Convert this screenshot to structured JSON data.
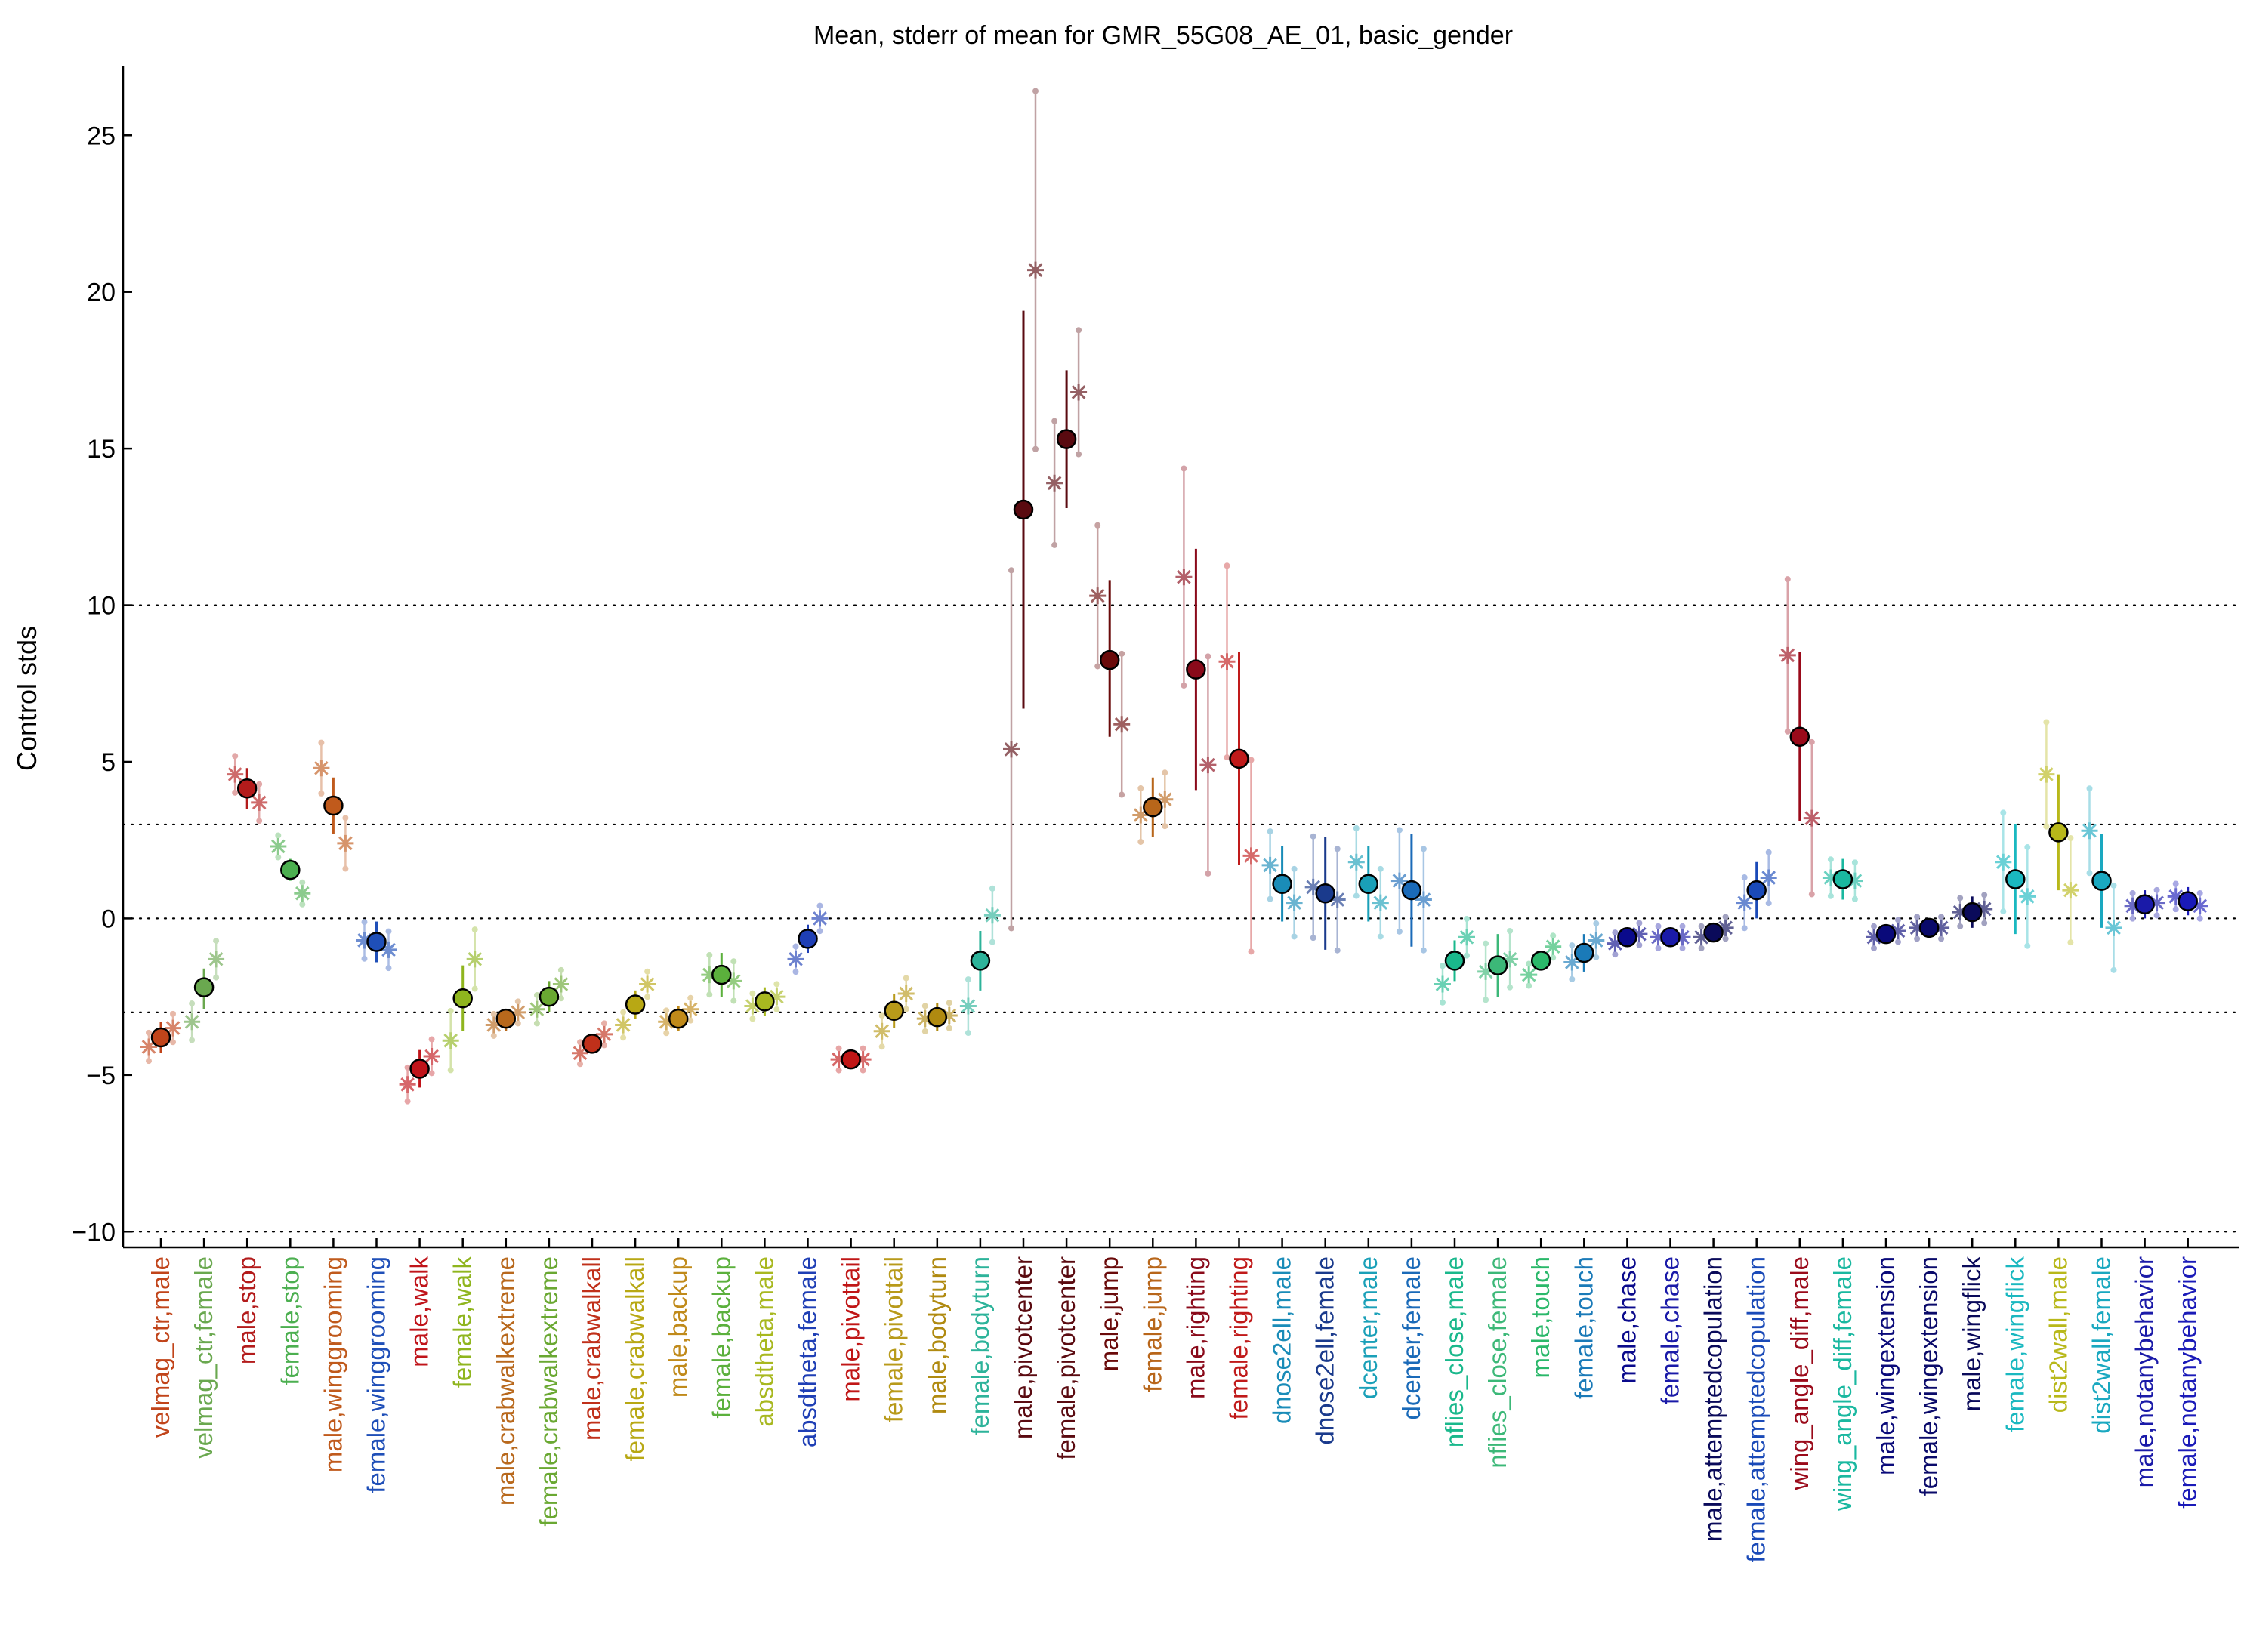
{
  "chart_data": {
    "type": "scatter",
    "title": "Mean, stderr of mean for GMR_55G08_AE_01, basic_gender",
    "xlabel": "",
    "ylabel": "Control stds",
    "ylim": [
      -10.5,
      27.2
    ],
    "yticks": [
      -10,
      -5,
      0,
      5,
      10,
      15,
      20,
      25
    ],
    "reference_lines": [
      -10,
      -3,
      0,
      3,
      10
    ],
    "grid": false,
    "legend": "none",
    "categories": [
      {
        "label": "velmag_ctr,male",
        "color": "#c1441a",
        "mean": -3.8,
        "lo": -4.3,
        "hi": -3.3,
        "dots": [
          -4.1,
          -3.5
        ]
      },
      {
        "label": "velmag_ctr,female",
        "color": "#6aa84f",
        "mean": -2.2,
        "lo": -2.9,
        "hi": -1.6,
        "dots": [
          -3.3,
          -1.3
        ]
      },
      {
        "label": "male,stop",
        "color": "#b31b1b",
        "mean": 4.15,
        "lo": 3.5,
        "hi": 4.8,
        "dots": [
          4.6,
          3.7
        ]
      },
      {
        "label": "female,stop",
        "color": "#4caf50",
        "mean": 1.55,
        "lo": 1.2,
        "hi": 1.9,
        "dots": [
          2.3,
          0.8
        ]
      },
      {
        "label": "male,winggrooming",
        "color": "#c05a1c",
        "mean": 3.6,
        "lo": 2.7,
        "hi": 4.5,
        "dots": [
          4.8,
          2.4
        ]
      },
      {
        "label": "female,winggrooming",
        "color": "#1f4fb8",
        "mean": -0.75,
        "lo": -1.4,
        "hi": -0.1,
        "dots": [
          -0.7,
          -1.0
        ]
      },
      {
        "label": "male,walk",
        "color": "#c0141a",
        "mean": -4.8,
        "lo": -5.4,
        "hi": -4.2,
        "dots": [
          -5.3,
          -4.4
        ]
      },
      {
        "label": "female,walk",
        "color": "#8fb51e",
        "mean": -2.55,
        "lo": -3.6,
        "hi": -1.5,
        "dots": [
          -3.9,
          -1.3
        ]
      },
      {
        "label": "male,crabwalkextreme",
        "color": "#b8681c",
        "mean": -3.2,
        "lo": -3.6,
        "hi": -2.9,
        "dots": [
          -3.4,
          -3.0
        ]
      },
      {
        "label": "female,crabwalkextreme",
        "color": "#6aa832",
        "mean": -2.5,
        "lo": -3.0,
        "hi": -2.0,
        "dots": [
          -2.9,
          -2.1
        ]
      },
      {
        "label": "male,crabwalkall",
        "color": "#c0301a",
        "mean": -4.0,
        "lo": -4.3,
        "hi": -3.7,
        "dots": [
          -4.3,
          -3.7
        ]
      },
      {
        "label": "female,crabwalkall",
        "color": "#b8a814",
        "mean": -2.75,
        "lo": -3.2,
        "hi": -2.3,
        "dots": [
          -3.4,
          -2.1
        ]
      },
      {
        "label": "male,backup",
        "color": "#c08a1a",
        "mean": -3.2,
        "lo": -3.6,
        "hi": -2.8,
        "dots": [
          -3.3,
          -2.9
        ]
      },
      {
        "label": "female,backup",
        "color": "#5bb03c",
        "mean": -1.8,
        "lo": -2.5,
        "hi": -1.1,
        "dots": [
          -1.8,
          -2.0
        ]
      },
      {
        "label": "absdtheta,male",
        "color": "#a8b820",
        "mean": -2.65,
        "lo": -3.1,
        "hi": -2.2,
        "dots": [
          -2.8,
          -2.5
        ]
      },
      {
        "label": "absdtheta,female",
        "color": "#1f3fb5",
        "mean": -0.65,
        "lo": -1.1,
        "hi": -0.2,
        "dots": [
          -1.3,
          0.0
        ]
      },
      {
        "label": "male,pivottail",
        "color": "#c01616",
        "mean": -4.5,
        "lo": -4.7,
        "hi": -4.3,
        "dots": [
          -4.5,
          -4.5
        ]
      },
      {
        "label": "female,pivottail",
        "color": "#b89a1a",
        "mean": -2.95,
        "lo": -3.5,
        "hi": -2.4,
        "dots": [
          -3.6,
          -2.4
        ]
      },
      {
        "label": "male,bodyturn",
        "color": "#b08a10",
        "mean": -3.15,
        "lo": -3.6,
        "hi": -2.7,
        "dots": [
          -3.2,
          -3.1
        ]
      },
      {
        "label": "female,bodyturn",
        "color": "#2db39a",
        "mean": -1.35,
        "lo": -2.3,
        "hi": -0.4,
        "dots": [
          -2.8,
          0.1
        ]
      },
      {
        "label": "male,pivotcenter",
        "color": "#5a0a10",
        "mean": 13.05,
        "lo": 6.7,
        "hi": 19.4,
        "dots": [
          5.4,
          20.7
        ]
      },
      {
        "label": "female,pivotcenter",
        "color": "#5a0a10",
        "mean": 15.3,
        "lo": 13.1,
        "hi": 17.5,
        "dots": [
          13.9,
          16.8
        ]
      },
      {
        "label": "male,jump",
        "color": "#6a0a0a",
        "mean": 8.25,
        "lo": 5.8,
        "hi": 10.8,
        "dots": [
          10.3,
          6.2
        ]
      },
      {
        "label": "female,jump",
        "color": "#b8661a",
        "mean": 3.55,
        "lo": 2.6,
        "hi": 4.5,
        "dots": [
          3.3,
          3.8
        ]
      },
      {
        "label": "male,righting",
        "color": "#8a0a1a",
        "mean": 7.95,
        "lo": 4.1,
        "hi": 11.8,
        "dots": [
          10.9,
          4.9
        ]
      },
      {
        "label": "female,righting",
        "color": "#c01a1a",
        "mean": 5.1,
        "lo": 1.7,
        "hi": 8.5,
        "dots": [
          8.2,
          2.0
        ]
      },
      {
        "label": "dnose2ell,male",
        "color": "#1a8cb8",
        "mean": 1.1,
        "lo": -0.1,
        "hi": 2.3,
        "dots": [
          1.7,
          0.5
        ]
      },
      {
        "label": "dnose2ell,female",
        "color": "#1a3a8c",
        "mean": 0.8,
        "lo": -1.0,
        "hi": 2.6,
        "dots": [
          1.0,
          0.6
        ]
      },
      {
        "label": "dcenter,male",
        "color": "#1aa0b8",
        "mean": 1.1,
        "lo": -0.1,
        "hi": 2.3,
        "dots": [
          1.8,
          0.5
        ]
      },
      {
        "label": "dcenter,female",
        "color": "#1a6ab8",
        "mean": 0.9,
        "lo": -0.9,
        "hi": 2.7,
        "dots": [
          1.2,
          0.6
        ]
      },
      {
        "label": "nflies_close,male",
        "color": "#1ab88c",
        "mean": -1.35,
        "lo": -2.0,
        "hi": -0.7,
        "dots": [
          -2.1,
          -0.6
        ]
      },
      {
        "label": "nflies_close,female",
        "color": "#3cb878",
        "mean": -1.5,
        "lo": -2.5,
        "hi": -0.5,
        "dots": [
          -1.7,
          -1.3
        ]
      },
      {
        "label": "male,touch",
        "color": "#2ab86a",
        "mean": -1.35,
        "lo": -1.6,
        "hi": -1.1,
        "dots": [
          -1.8,
          -0.9
        ]
      },
      {
        "label": "female,touch",
        "color": "#1a7ab8",
        "mean": -1.1,
        "lo": -1.7,
        "hi": -0.5,
        "dots": [
          -1.4,
          -0.7
        ]
      },
      {
        "label": "male,chase",
        "color": "#0a0a8c",
        "mean": -0.6,
        "lo": -0.9,
        "hi": -0.3,
        "dots": [
          -0.8,
          -0.5
        ]
      },
      {
        "label": "female,chase",
        "color": "#1a1aa8",
        "mean": -0.6,
        "lo": -0.8,
        "hi": -0.4,
        "dots": [
          -0.6,
          -0.6
        ]
      },
      {
        "label": "male,attemptedcopulation",
        "color": "#0a0a5a",
        "mean": -0.45,
        "lo": -0.7,
        "hi": -0.2,
        "dots": [
          -0.6,
          -0.3
        ]
      },
      {
        "label": "female,attemptedcopulation",
        "color": "#1a4ab8",
        "mean": 0.9,
        "lo": 0.0,
        "hi": 1.8,
        "dots": [
          0.5,
          1.3
        ]
      },
      {
        "label": "wing_angle_diff,male",
        "color": "#9a0a1a",
        "mean": 5.8,
        "lo": 3.1,
        "hi": 8.5,
        "dots": [
          8.4,
          3.2
        ]
      },
      {
        "label": "wing_angle_diff,female",
        "color": "#1ab8a0",
        "mean": 1.25,
        "lo": 0.6,
        "hi": 1.9,
        "dots": [
          1.3,
          1.2
        ]
      },
      {
        "label": "male,wingextension",
        "color": "#0a0a7a",
        "mean": -0.5,
        "lo": -0.7,
        "hi": -0.3,
        "dots": [
          -0.6,
          -0.4
        ]
      },
      {
        "label": "female,wingextension",
        "color": "#0a0a6a",
        "mean": -0.3,
        "lo": -0.5,
        "hi": -0.1,
        "dots": [
          -0.3,
          -0.3
        ]
      },
      {
        "label": "male,wingflick",
        "color": "#0a0a5a",
        "mean": 0.2,
        "lo": -0.3,
        "hi": 0.7,
        "dots": [
          0.2,
          0.3
        ]
      },
      {
        "label": "female,wingflick",
        "color": "#1ab8c0",
        "mean": 1.25,
        "lo": -0.5,
        "hi": 3.0,
        "dots": [
          1.8,
          0.7
        ]
      },
      {
        "label": "dist2wall,male",
        "color": "#b8b81a",
        "mean": 2.75,
        "lo": 0.9,
        "hi": 4.6,
        "dots": [
          4.6,
          0.9
        ]
      },
      {
        "label": "dist2wall,female",
        "color": "#1aa8c0",
        "mean": 1.2,
        "lo": -0.3,
        "hi": 2.7,
        "dots": [
          2.8,
          -0.3
        ]
      },
      {
        "label": "male,notanybehavior",
        "color": "#1a1aa8",
        "mean": 0.45,
        "lo": 0.0,
        "hi": 0.9,
        "dots": [
          0.4,
          0.5
        ]
      },
      {
        "label": "female,notanybehavior",
        "color": "#1a1ab8",
        "mean": 0.55,
        "lo": 0.1,
        "hi": 1.0,
        "dots": [
          0.7,
          0.4
        ]
      }
    ]
  }
}
